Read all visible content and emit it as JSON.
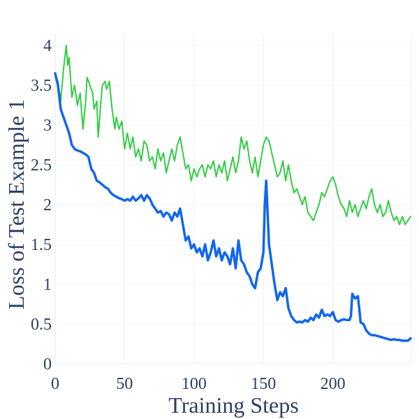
{
  "chart_data": {
    "type": "line",
    "title": "",
    "xlabel": "Training Steps",
    "ylabel": "Loss of Test Example 1",
    "xlim": [
      0,
      257
    ],
    "ylim": [
      0,
      4.15
    ],
    "x_ticks": [
      0,
      50,
      100,
      150,
      200
    ],
    "x_tick_labels": [
      "0",
      "50",
      "100",
      "150",
      "200"
    ],
    "y_ticks": [
      0,
      0.5,
      1,
      1.5,
      2,
      2.5,
      3,
      3.5,
      4
    ],
    "y_tick_labels": [
      "0",
      "0.5",
      "1",
      "1.5",
      "2",
      "2.5",
      "3",
      "3.5",
      "4"
    ],
    "grid": true,
    "legend": "none",
    "series": [
      {
        "name": "green",
        "color": "#33cc44",
        "line_width": 2,
        "points": [
          [
            0,
            3.6
          ],
          [
            2,
            3.55
          ],
          [
            4,
            3.3
          ],
          [
            6,
            3.7
          ],
          [
            8,
            4.0
          ],
          [
            9,
            3.75
          ],
          [
            10,
            3.85
          ],
          [
            12,
            3.35
          ],
          [
            14,
            3.5
          ],
          [
            16,
            3.25
          ],
          [
            18,
            3.4
          ],
          [
            20,
            2.95
          ],
          [
            22,
            3.3
          ],
          [
            23,
            3.6
          ],
          [
            25,
            3.5
          ],
          [
            27,
            3.4
          ],
          [
            28,
            3.2
          ],
          [
            30,
            3.3
          ],
          [
            31,
            2.85
          ],
          [
            33,
            3.3
          ],
          [
            34,
            3.5
          ],
          [
            36,
            3.55
          ],
          [
            37,
            3.45
          ],
          [
            39,
            3.55
          ],
          [
            41,
            3.2
          ],
          [
            43,
            2.95
          ],
          [
            44,
            3.1
          ],
          [
            46,
            2.95
          ],
          [
            48,
            3.05
          ],
          [
            50,
            2.7
          ],
          [
            52,
            2.9
          ],
          [
            54,
            2.7
          ],
          [
            56,
            2.85
          ],
          [
            58,
            2.6
          ],
          [
            60,
            2.7
          ],
          [
            62,
            2.55
          ],
          [
            64,
            2.8
          ],
          [
            66,
            2.75
          ],
          [
            68,
            2.55
          ],
          [
            70,
            2.6
          ],
          [
            72,
            2.45
          ],
          [
            74,
            2.7
          ],
          [
            76,
            2.55
          ],
          [
            78,
            2.65
          ],
          [
            80,
            2.4
          ],
          [
            82,
            2.55
          ],
          [
            84,
            2.7
          ],
          [
            86,
            2.55
          ],
          [
            88,
            2.75
          ],
          [
            90,
            2.85
          ],
          [
            92,
            2.65
          ],
          [
            94,
            2.45
          ],
          [
            96,
            2.5
          ],
          [
            98,
            2.3
          ],
          [
            100,
            2.45
          ],
          [
            102,
            2.35
          ],
          [
            104,
            2.45
          ],
          [
            106,
            2.5
          ],
          [
            108,
            2.35
          ],
          [
            110,
            2.5
          ],
          [
            112,
            2.45
          ],
          [
            114,
            2.55
          ],
          [
            116,
            2.35
          ],
          [
            118,
            2.5
          ],
          [
            120,
            2.4
          ],
          [
            122,
            2.55
          ],
          [
            124,
            2.3
          ],
          [
            126,
            2.45
          ],
          [
            128,
            2.6
          ],
          [
            130,
            2.4
          ],
          [
            132,
            2.55
          ],
          [
            134,
            2.85
          ],
          [
            136,
            2.7
          ],
          [
            138,
            2.8
          ],
          [
            140,
            2.55
          ],
          [
            142,
            2.4
          ],
          [
            144,
            2.6
          ],
          [
            146,
            2.35
          ],
          [
            148,
            2.55
          ],
          [
            150,
            2.75
          ],
          [
            152,
            2.85
          ],
          [
            154,
            2.8
          ],
          [
            156,
            2.65
          ],
          [
            158,
            2.5
          ],
          [
            160,
            2.35
          ],
          [
            162,
            2.4
          ],
          [
            164,
            2.55
          ],
          [
            166,
            2.3
          ],
          [
            168,
            2.5
          ],
          [
            170,
            2.3
          ],
          [
            172,
            2.15
          ],
          [
            174,
            2.2
          ],
          [
            176,
            2.1
          ],
          [
            178,
            2.0
          ],
          [
            180,
            2.1
          ],
          [
            182,
            1.9
          ],
          [
            184,
            1.85
          ],
          [
            186,
            1.8
          ],
          [
            188,
            1.9
          ],
          [
            190,
            2.0
          ],
          [
            192,
            2.15
          ],
          [
            194,
            2.1
          ],
          [
            196,
            2.2
          ],
          [
            198,
            2.3
          ],
          [
            200,
            2.35
          ],
          [
            202,
            2.25
          ],
          [
            204,
            2.1
          ],
          [
            206,
            2.0
          ],
          [
            208,
            1.95
          ],
          [
            210,
            1.85
          ],
          [
            212,
            2.05
          ],
          [
            214,
            1.9
          ],
          [
            216,
            2.0
          ],
          [
            218,
            1.85
          ],
          [
            220,
            1.95
          ],
          [
            222,
            2.05
          ],
          [
            224,
            1.95
          ],
          [
            226,
            2.1
          ],
          [
            228,
            2.2
          ],
          [
            230,
            2.0
          ],
          [
            232,
            1.9
          ],
          [
            234,
            2.0
          ],
          [
            236,
            1.85
          ],
          [
            238,
            1.9
          ],
          [
            240,
            2.05
          ],
          [
            242,
            1.9
          ],
          [
            244,
            1.8
          ],
          [
            246,
            1.85
          ],
          [
            248,
            1.75
          ],
          [
            250,
            1.85
          ],
          [
            252,
            1.75
          ],
          [
            254,
            1.8
          ],
          [
            256,
            1.85
          ]
        ]
      },
      {
        "name": "blue",
        "color": "#1166ee",
        "line_width": 3.5,
        "points": [
          [
            0,
            3.65
          ],
          [
            2,
            3.5
          ],
          [
            4,
            3.2
          ],
          [
            6,
            3.1
          ],
          [
            8,
            3.0
          ],
          [
            10,
            2.9
          ],
          [
            12,
            2.75
          ],
          [
            14,
            2.7
          ],
          [
            16,
            2.68
          ],
          [
            18,
            2.67
          ],
          [
            20,
            2.65
          ],
          [
            22,
            2.63
          ],
          [
            24,
            2.6
          ],
          [
            26,
            2.45
          ],
          [
            28,
            2.4
          ],
          [
            30,
            2.3
          ],
          [
            32,
            2.28
          ],
          [
            34,
            2.25
          ],
          [
            36,
            2.22
          ],
          [
            38,
            2.2
          ],
          [
            40,
            2.15
          ],
          [
            42,
            2.12
          ],
          [
            44,
            2.1
          ],
          [
            46,
            2.08
          ],
          [
            48,
            2.07
          ],
          [
            50,
            2.05
          ],
          [
            52,
            2.07
          ],
          [
            54,
            2.05
          ],
          [
            56,
            2.1
          ],
          [
            58,
            2.05
          ],
          [
            60,
            2.08
          ],
          [
            62,
            2.12
          ],
          [
            64,
            2.05
          ],
          [
            66,
            2.12
          ],
          [
            68,
            2.08
          ],
          [
            70,
            2.0
          ],
          [
            72,
            1.95
          ],
          [
            74,
            1.9
          ],
          [
            76,
            1.92
          ],
          [
            78,
            1.85
          ],
          [
            80,
            1.9
          ],
          [
            82,
            1.88
          ],
          [
            84,
            1.8
          ],
          [
            86,
            1.9
          ],
          [
            88,
            1.85
          ],
          [
            90,
            1.95
          ],
          [
            92,
            1.75
          ],
          [
            94,
            1.55
          ],
          [
            96,
            1.6
          ],
          [
            98,
            1.45
          ],
          [
            100,
            1.5
          ],
          [
            102,
            1.4
          ],
          [
            104,
            1.45
          ],
          [
            106,
            1.35
          ],
          [
            108,
            1.5
          ],
          [
            110,
            1.3
          ],
          [
            112,
            1.4
          ],
          [
            114,
            1.55
          ],
          [
            116,
            1.35
          ],
          [
            118,
            1.45
          ],
          [
            120,
            1.3
          ],
          [
            122,
            1.4
          ],
          [
            124,
            1.35
          ],
          [
            126,
            1.25
          ],
          [
            128,
            1.45
          ],
          [
            130,
            1.2
          ],
          [
            132,
            1.55
          ],
          [
            134,
            1.3
          ],
          [
            136,
            1.25
          ],
          [
            138,
            1.15
          ],
          [
            140,
            1.1
          ],
          [
            142,
            1.0
          ],
          [
            144,
            0.95
          ],
          [
            146,
            1.15
          ],
          [
            148,
            1.2
          ],
          [
            150,
            1.4
          ],
          [
            151,
            2.0
          ],
          [
            152,
            2.3
          ],
          [
            153,
            1.9
          ],
          [
            154,
            1.5
          ],
          [
            156,
            1.25
          ],
          [
            158,
            1.0
          ],
          [
            160,
            0.8
          ],
          [
            162,
            0.9
          ],
          [
            164,
            0.85
          ],
          [
            166,
            0.95
          ],
          [
            168,
            0.7
          ],
          [
            170,
            0.6
          ],
          [
            172,
            0.55
          ],
          [
            174,
            0.52
          ],
          [
            176,
            0.53
          ],
          [
            178,
            0.52
          ],
          [
            180,
            0.55
          ],
          [
            182,
            0.53
          ],
          [
            184,
            0.58
          ],
          [
            186,
            0.55
          ],
          [
            188,
            0.62
          ],
          [
            190,
            0.58
          ],
          [
            192,
            0.68
          ],
          [
            194,
            0.6
          ],
          [
            196,
            0.62
          ],
          [
            198,
            0.6
          ],
          [
            200,
            0.65
          ],
          [
            202,
            0.55
          ],
          [
            204,
            0.53
          ],
          [
            206,
            0.55
          ],
          [
            208,
            0.56
          ],
          [
            210,
            0.55
          ],
          [
            212,
            0.55
          ],
          [
            213,
            0.6
          ],
          [
            214,
            0.88
          ],
          [
            216,
            0.82
          ],
          [
            218,
            0.85
          ],
          [
            219,
            0.7
          ],
          [
            220,
            0.52
          ],
          [
            222,
            0.5
          ],
          [
            224,
            0.42
          ],
          [
            226,
            0.38
          ],
          [
            228,
            0.36
          ],
          [
            230,
            0.36
          ],
          [
            232,
            0.35
          ],
          [
            234,
            0.34
          ],
          [
            236,
            0.33
          ],
          [
            238,
            0.32
          ],
          [
            240,
            0.31
          ],
          [
            242,
            0.3
          ],
          [
            244,
            0.31
          ],
          [
            246,
            0.3
          ],
          [
            248,
            0.3
          ],
          [
            250,
            0.29
          ],
          [
            252,
            0.29
          ],
          [
            254,
            0.29
          ],
          [
            256,
            0.32
          ]
        ]
      }
    ]
  }
}
